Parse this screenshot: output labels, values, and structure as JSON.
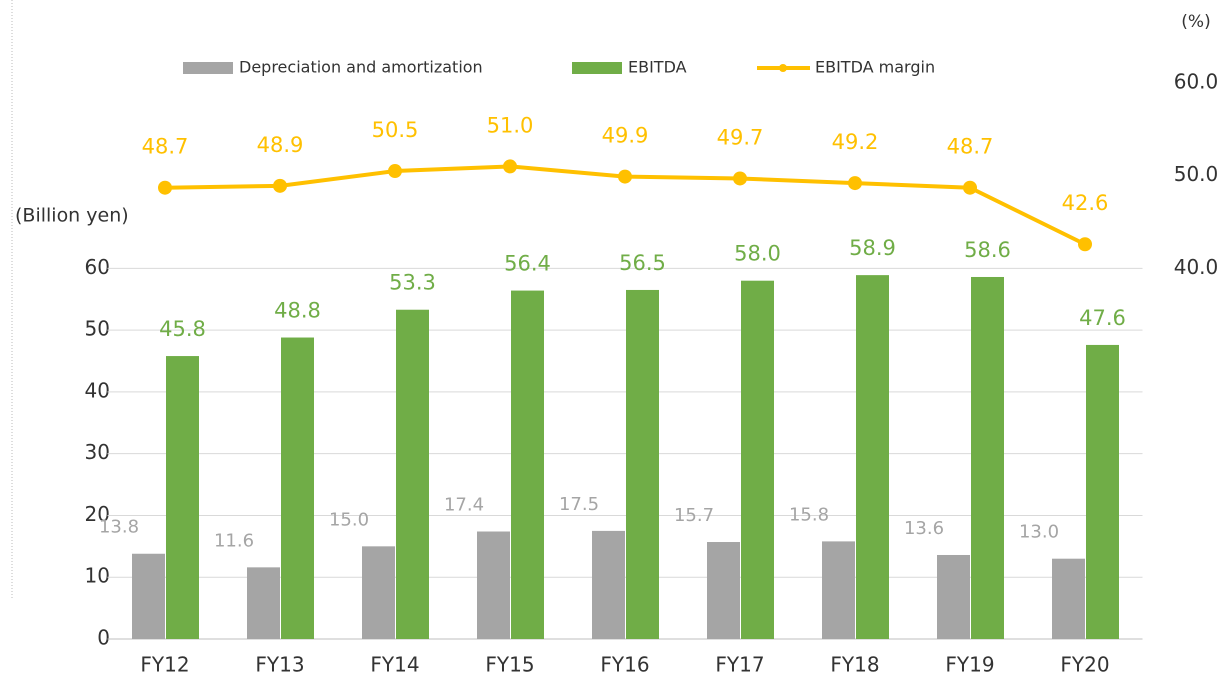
{
  "chart_data": {
    "type": "bar_line",
    "y_label": "(Billion yen)",
    "y2_label": "(%)",
    "categories": [
      "FY12",
      "FY13",
      "FY14",
      "FY15",
      "FY16",
      "FY17",
      "FY18",
      "FY19",
      "FY20"
    ],
    "series": [
      {
        "name": "Depreciation and amortization",
        "color": "#a5a5a5",
        "type": "bar",
        "values": [
          13.8,
          11.6,
          15.0,
          17.4,
          17.5,
          15.7,
          15.8,
          13.6,
          13.0
        ],
        "value_labels": [
          "13.8",
          "11.6",
          "15.0",
          "17.4",
          "17.5",
          "15.7",
          "15.8",
          "13.6",
          "13.0"
        ]
      },
      {
        "name": "EBITDA",
        "color": "#70ad47",
        "type": "bar",
        "values": [
          45.8,
          48.8,
          53.3,
          56.4,
          56.5,
          58.0,
          58.9,
          58.6,
          47.6
        ],
        "value_labels": [
          "45.8",
          "48.8",
          "53.3",
          "56.4",
          "56.5",
          "58.0",
          "58.9",
          "58.6",
          "47.6"
        ]
      },
      {
        "name": "EBITDA margin",
        "color": "#ffc000",
        "type": "line",
        "axis": "y2",
        "values": [
          48.7,
          48.9,
          50.5,
          51.0,
          49.9,
          49.7,
          49.2,
          48.7,
          42.6
        ],
        "value_labels": [
          "48.7",
          "48.9",
          "50.5",
          "51.0",
          "49.9",
          "49.7",
          "49.2",
          "48.7",
          "42.6"
        ]
      }
    ],
    "ylim": [
      0,
      90
    ],
    "yticks": [
      0,
      10,
      20,
      30,
      40,
      50,
      60
    ],
    "y2lim": [
      0,
      60
    ],
    "y2ticks": [
      {
        "value": 40,
        "label": "40.0"
      },
      {
        "value": 50,
        "label": "50.0"
      },
      {
        "value": 60,
        "label": "60.0"
      }
    ],
    "grid": true,
    "legend": "top"
  }
}
